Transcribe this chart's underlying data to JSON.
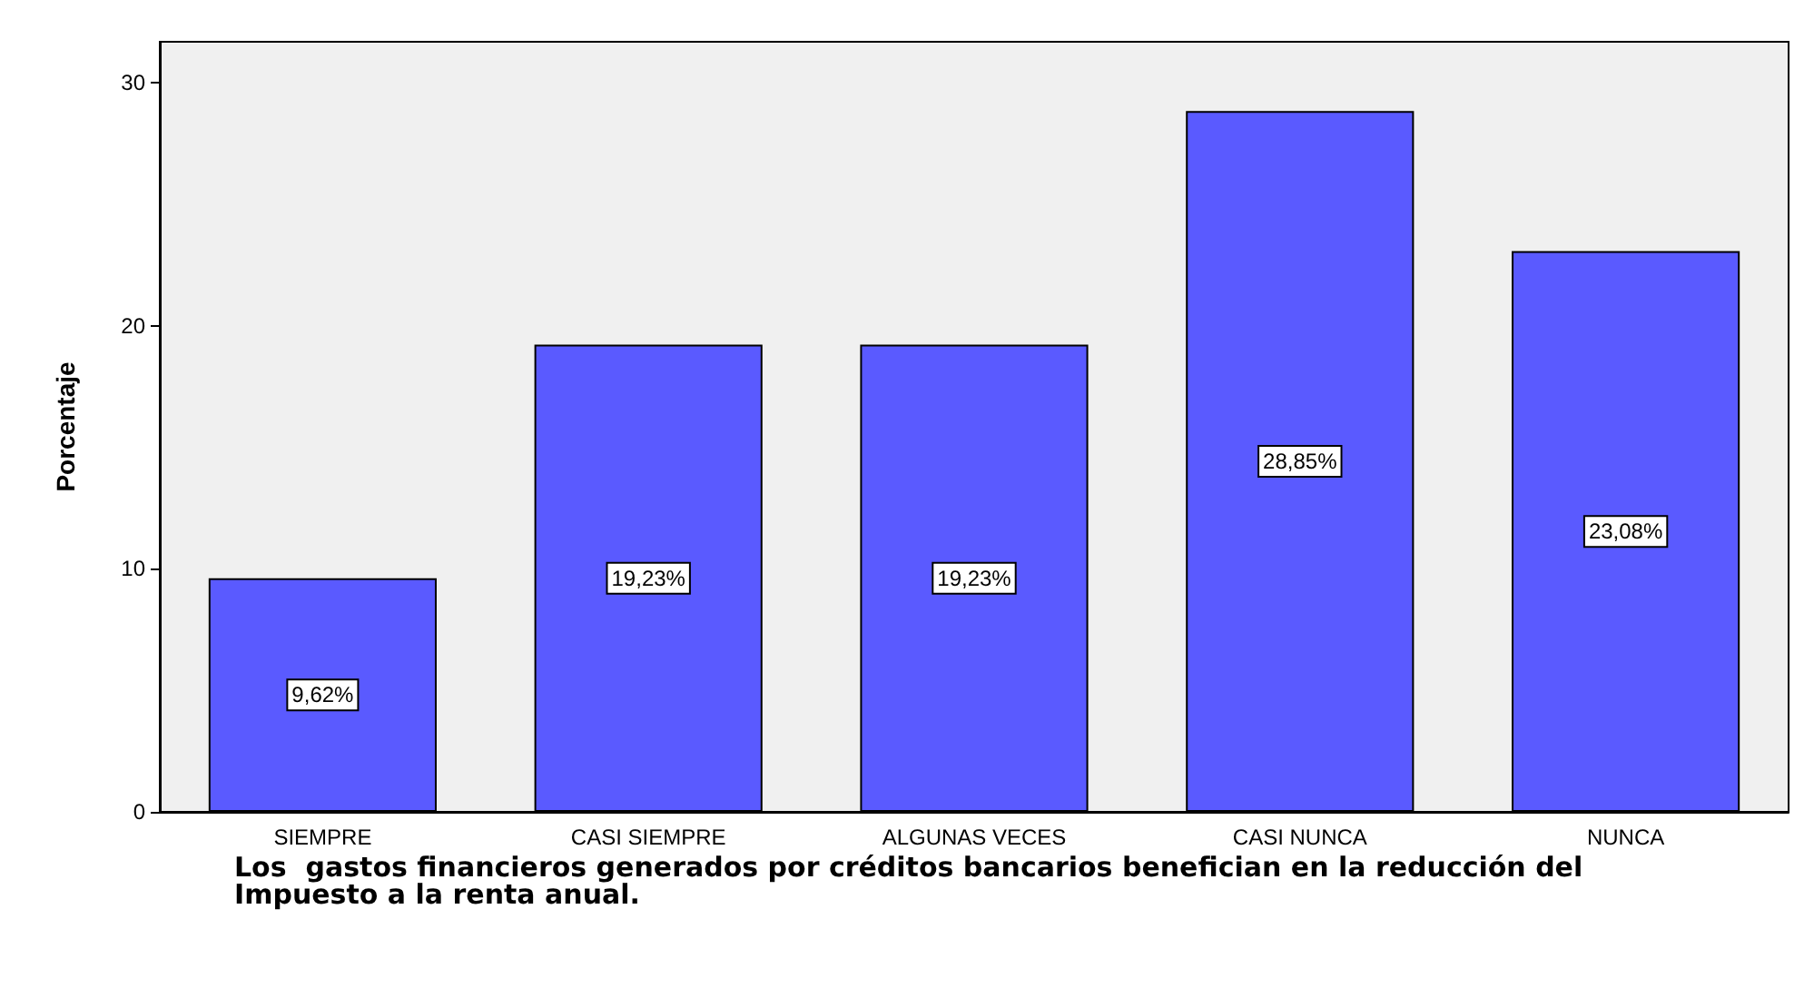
{
  "chart_data": {
    "type": "bar",
    "xlabel": "Los  gastos financieros generados por créditos bancarios benefician en la reducción del Impuesto a la renta anual.",
    "ylabel": "Porcentaje",
    "categories": [
      "SIEMPRE",
      "CASI SIEMPRE",
      "ALGUNAS VECES",
      "CASI NUNCA",
      "NUNCA"
    ],
    "values": [
      9.62,
      19.23,
      19.23,
      28.85,
      23.08
    ],
    "value_labels": [
      "9,62%",
      "19,23%",
      "19,23%",
      "28,85%",
      "23,08%"
    ],
    "color": "#5a5aff",
    "ylim": [
      0,
      31.7
    ],
    "yticks": [
      0,
      10,
      20,
      30
    ],
    "grid": false
  }
}
